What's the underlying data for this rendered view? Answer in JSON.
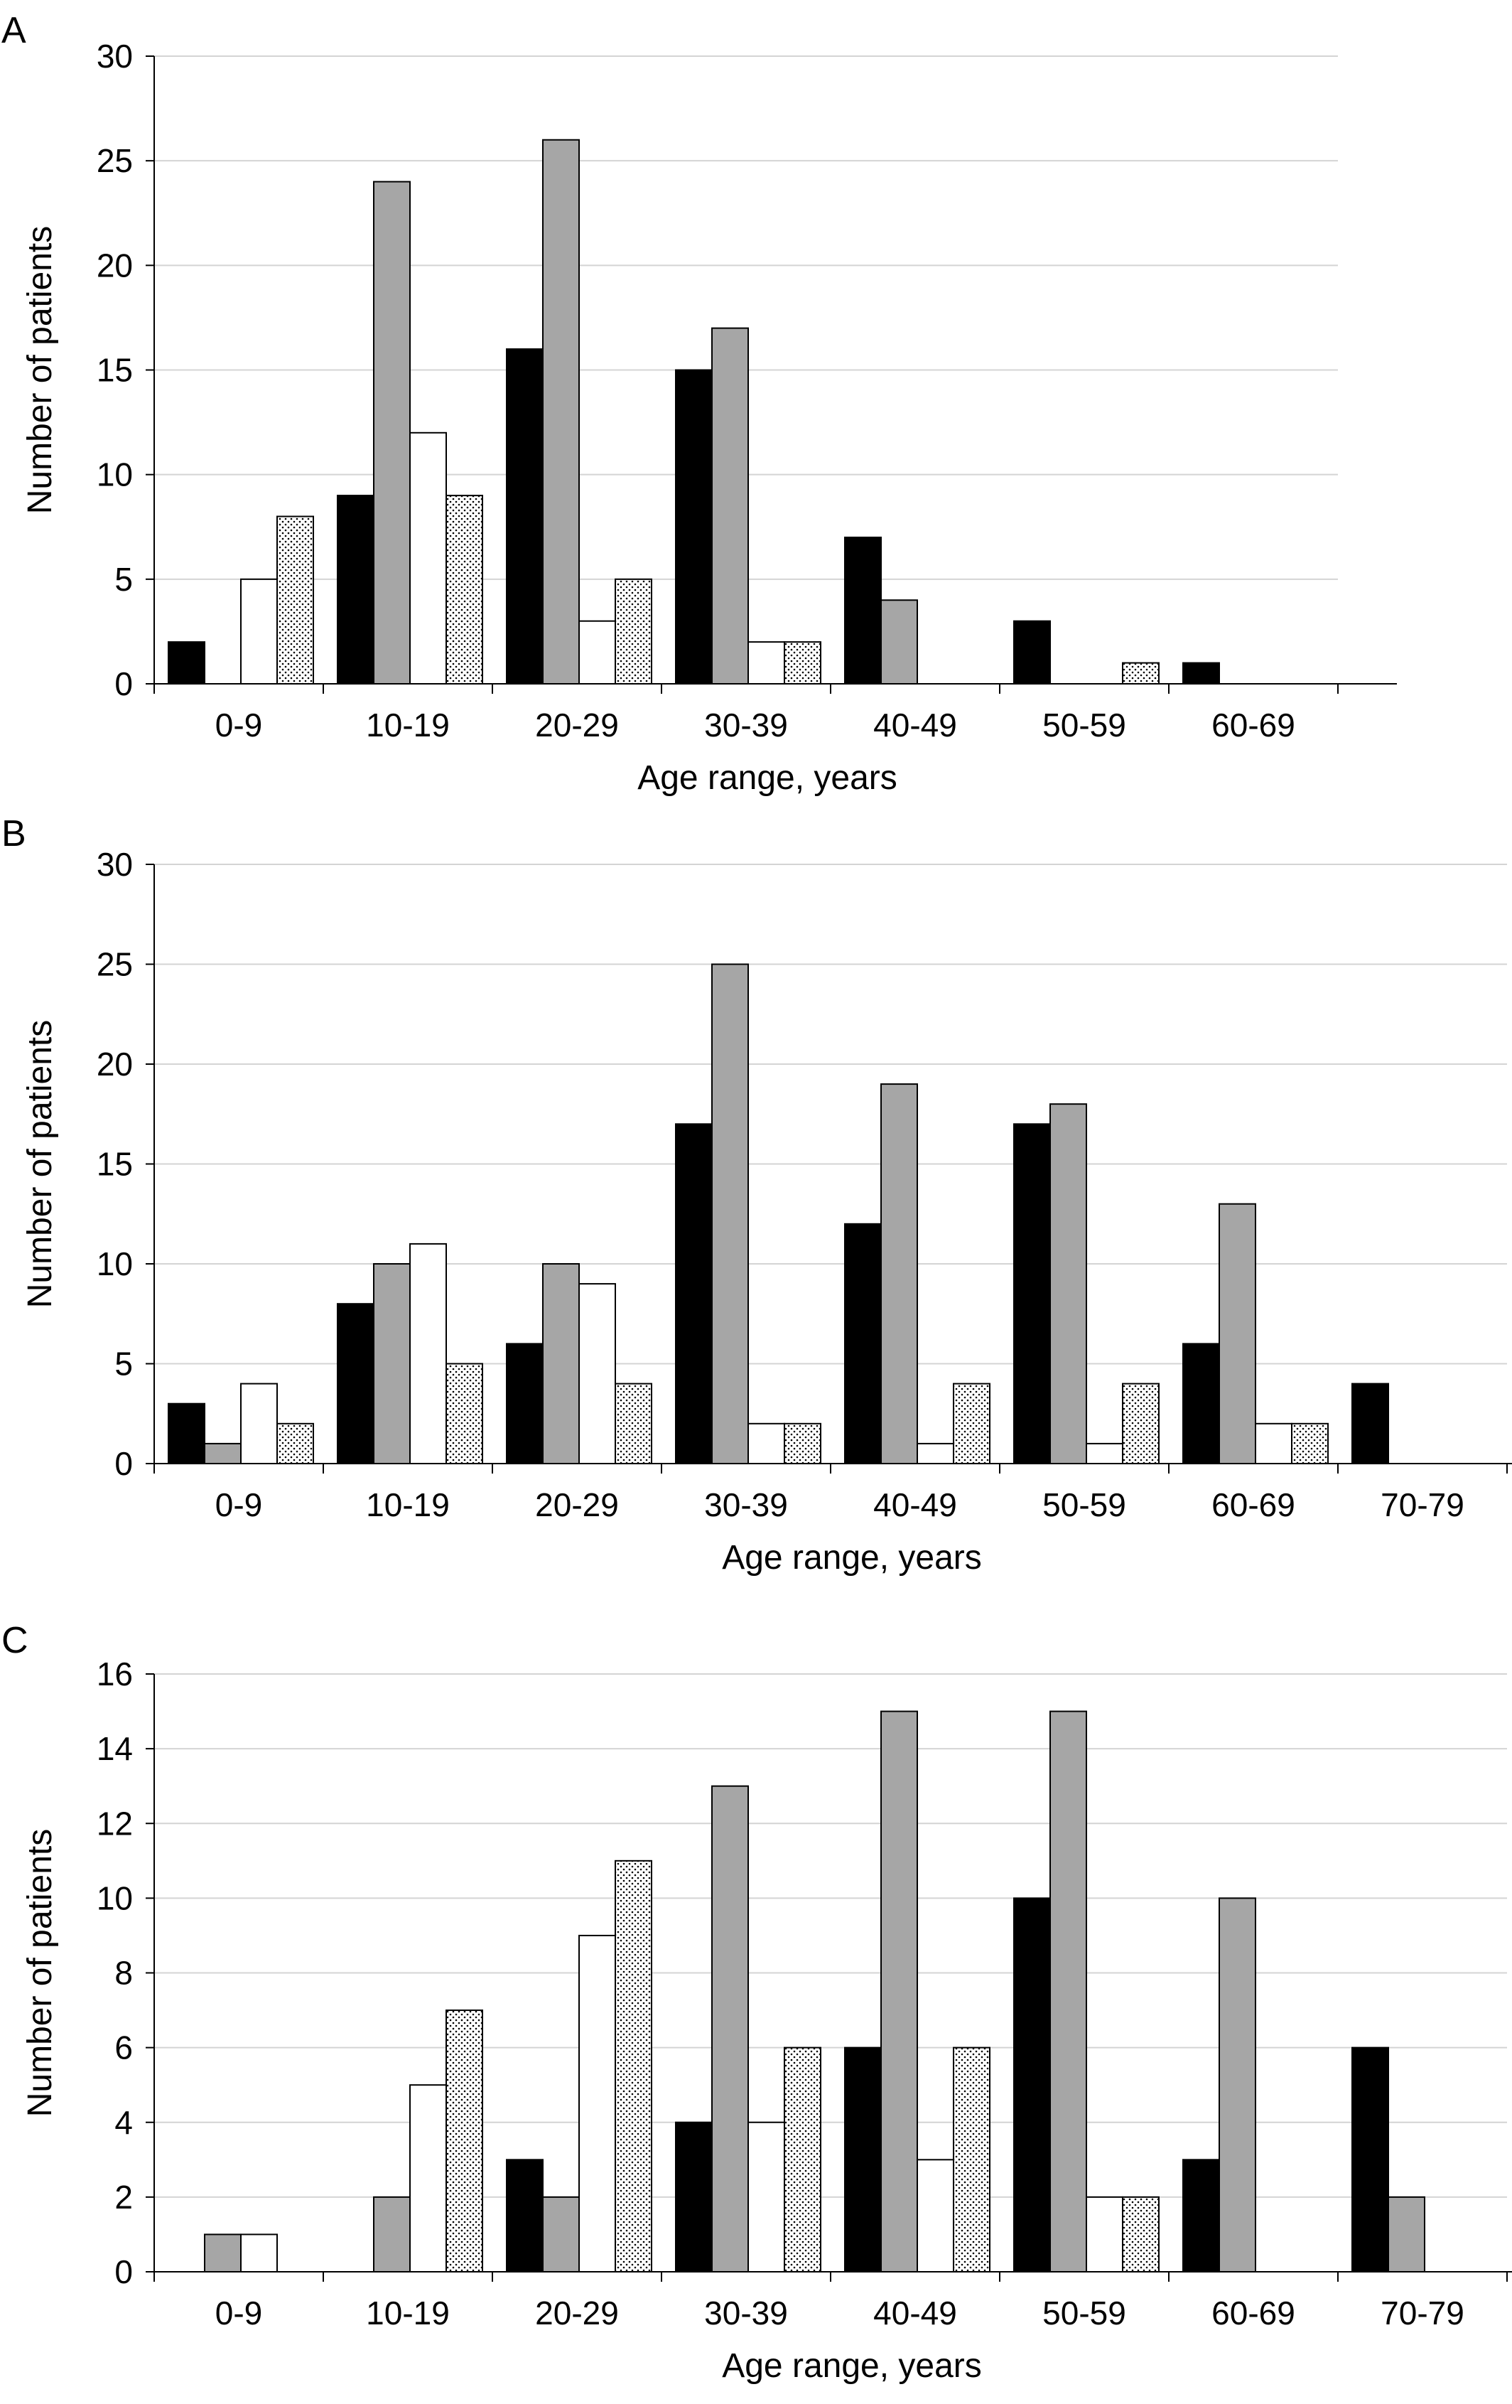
{
  "chart_data": [
    {
      "type": "bar",
      "panel_label": "A",
      "xlabel": "Age range, years",
      "ylabel": "Number of patients",
      "ylim": [
        0,
        30
      ],
      "yticks": [
        0,
        5,
        10,
        15,
        20,
        25,
        30
      ],
      "grid": true,
      "categories": [
        "0-9",
        "10-19",
        "20-29",
        "30-39",
        "40-49",
        "50-59",
        "60-69"
      ],
      "series": [
        {
          "fill": "black",
          "values": [
            2,
            9,
            16,
            15,
            7,
            3,
            1
          ]
        },
        {
          "fill": "gray",
          "values": [
            0,
            24,
            26,
            17,
            4,
            0,
            0
          ]
        },
        {
          "fill": "white",
          "values": [
            5,
            12,
            3,
            2,
            0,
            0,
            0
          ]
        },
        {
          "fill": "dotted",
          "values": [
            8,
            9,
            5,
            2,
            0,
            1,
            0
          ]
        }
      ]
    },
    {
      "type": "bar",
      "panel_label": "B",
      "xlabel": "Age range, years",
      "ylabel": "Number of patients",
      "ylim": [
        0,
        30
      ],
      "yticks": [
        0,
        5,
        10,
        15,
        20,
        25,
        30
      ],
      "grid": true,
      "categories": [
        "0-9",
        "10-19",
        "20-29",
        "30-39",
        "40-49",
        "50-59",
        "60-69",
        "70-79"
      ],
      "series": [
        {
          "fill": "black",
          "values": [
            3,
            8,
            6,
            17,
            12,
            17,
            6,
            4
          ]
        },
        {
          "fill": "gray",
          "values": [
            1,
            10,
            10,
            25,
            19,
            18,
            13,
            0
          ]
        },
        {
          "fill": "white",
          "values": [
            4,
            11,
            9,
            2,
            1,
            1,
            2,
            0
          ]
        },
        {
          "fill": "dotted",
          "values": [
            2,
            5,
            4,
            2,
            4,
            4,
            2,
            0
          ]
        }
      ]
    },
    {
      "type": "bar",
      "panel_label": "C",
      "xlabel": "Age range, years",
      "ylabel": "Number of patients",
      "ylim": [
        0,
        16
      ],
      "yticks": [
        0,
        2,
        4,
        6,
        8,
        10,
        12,
        14,
        16
      ],
      "grid": true,
      "categories": [
        "0-9",
        "10-19",
        "20-29",
        "30-39",
        "40-49",
        "50-59",
        "60-69",
        "70-79"
      ],
      "series": [
        {
          "fill": "black",
          "values": [
            0,
            0,
            3,
            4,
            6,
            10,
            3,
            6
          ]
        },
        {
          "fill": "gray",
          "values": [
            1,
            2,
            2,
            13,
            15,
            15,
            10,
            2
          ]
        },
        {
          "fill": "white",
          "values": [
            1,
            5,
            9,
            4,
            3,
            2,
            0,
            0
          ]
        },
        {
          "fill": "dotted",
          "values": [
            0,
            7,
            11,
            6,
            6,
            2,
            0,
            0
          ]
        }
      ]
    }
  ],
  "colors": {
    "black": "#000000",
    "gray": "#a6a6a6",
    "white": "#ffffff",
    "grid": "#d4d4d4"
  }
}
